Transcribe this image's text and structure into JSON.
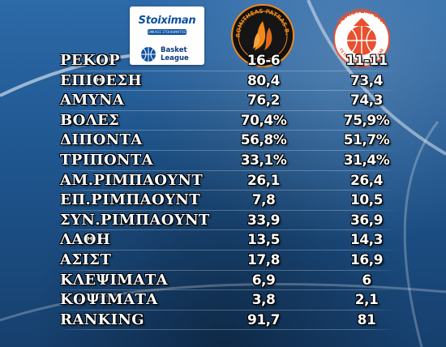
{
  "sponsor": {
    "name": "Stoiximan",
    "tagline": "ΟΜΙΛΟΣ ΣΤΟΙΧΗΜΑΤΟΣ",
    "league_line1": "Basket",
    "league_line2": "League"
  },
  "teams": {
    "home": {
      "logo_text": "PROMITHEAS PATRAS B.C.",
      "colors": {
        "primary": "#111111",
        "accent": "#f28a1a"
      }
    },
    "away": {
      "logo_text_top": "PERISTERI B.C.",
      "logo_text_bottom": "ΓΣ ΠΕΡΙΣΤΕΡΙΟΥ 1971 ΚΑΕ",
      "colors": {
        "primary": "#ffffff",
        "accent": "#e8502e"
      }
    }
  },
  "stats": [
    {
      "label": "ΡΕΚΟΡ",
      "home": "16-6",
      "away": "11-11"
    },
    {
      "label": "ΕΠΙΘΕΣΗ",
      "home": "80,4",
      "away": "73,4"
    },
    {
      "label": "ΑΜΥΝΑ",
      "home": "76,2",
      "away": "74,3"
    },
    {
      "label": "ΒΟΛΕΣ",
      "home": "70,4%",
      "away": "75,9%"
    },
    {
      "label": "ΔΙΠΟΝΤΑ",
      "home": "56,8%",
      "away": "51,7%"
    },
    {
      "label": "ΤΡΙΠΟΝΤΑ",
      "home": "33,1%",
      "away": "31,4%"
    },
    {
      "label": "ΑΜ.ΡΙΜΠΑΟΥΝΤ",
      "home": "26,1",
      "away": "26,4"
    },
    {
      "label": "ΕΠ.ΡΙΜΠΑΟΥΝΤ",
      "home": "7,8",
      "away": "10,5"
    },
    {
      "label": "ΣΥΝ.ΡΙΜΠΑΟΥΝΤ",
      "home": "33,9",
      "away": "36,9"
    },
    {
      "label": "ΛΑΘΗ",
      "home": "13,5",
      "away": "14,3"
    },
    {
      "label": "ΑΣΙΣΤ",
      "home": "17,8",
      "away": "16,9"
    },
    {
      "label": "ΚΛΕΨΙΜΑΤΑ",
      "home": "6,9",
      "away": "6"
    },
    {
      "label": "ΚΟΨΙΜΑΤΑ",
      "home": "3,8",
      "away": "2,1"
    },
    {
      "label": "RANKING",
      "home": "91,7",
      "away": "81"
    }
  ],
  "colors": {
    "text": "#ffffff",
    "background": "#1f568f",
    "sponsor_blue": "#0b4fa0"
  }
}
